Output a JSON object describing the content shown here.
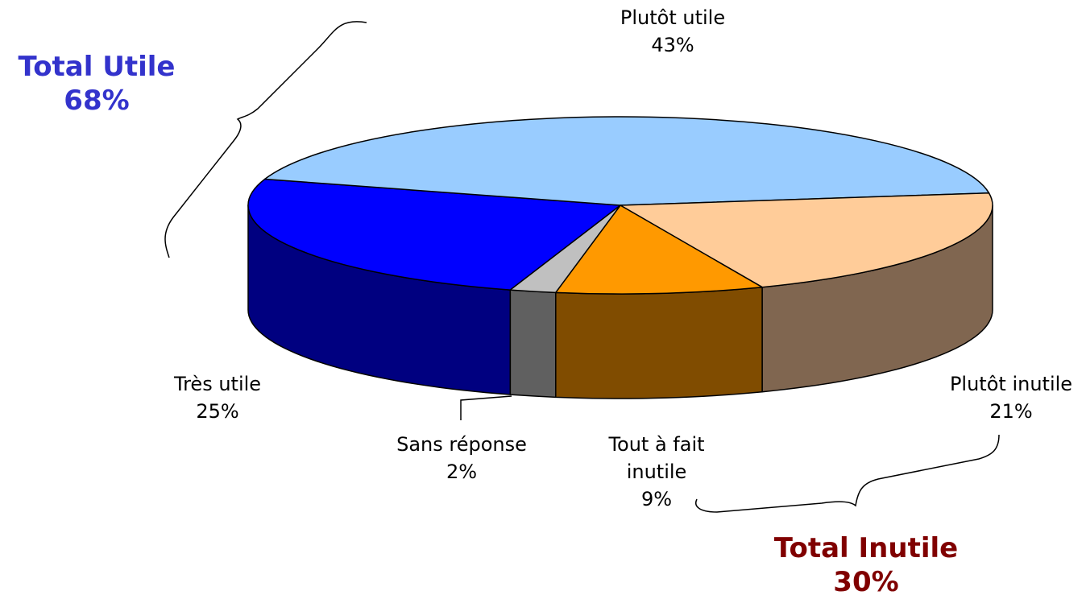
{
  "chart_data": {
    "type": "pie3d",
    "categories": [
      "Très utile",
      "Plutôt utile",
      "Plutôt inutile",
      "Tout à fait inutile",
      "Sans réponse"
    ],
    "values": [
      25,
      43,
      21,
      9,
      2
    ],
    "value_labels": [
      "25%",
      "43%",
      "21%",
      "9%",
      "2%"
    ],
    "colors": [
      "#0000FF",
      "#99CCFF",
      "#FFCC99",
      "#FF9900",
      "#C0C0C0"
    ],
    "side_colors": [
      "#000080",
      "#5C7A99",
      "#806650",
      "#804C00",
      "#606060"
    ],
    "annotations": [
      {
        "text": "Total Utile",
        "label": "68%",
        "color": "#3333CC"
      },
      {
        "text": "Total Inutile",
        "label": "30%",
        "color": "#800000"
      }
    ]
  }
}
